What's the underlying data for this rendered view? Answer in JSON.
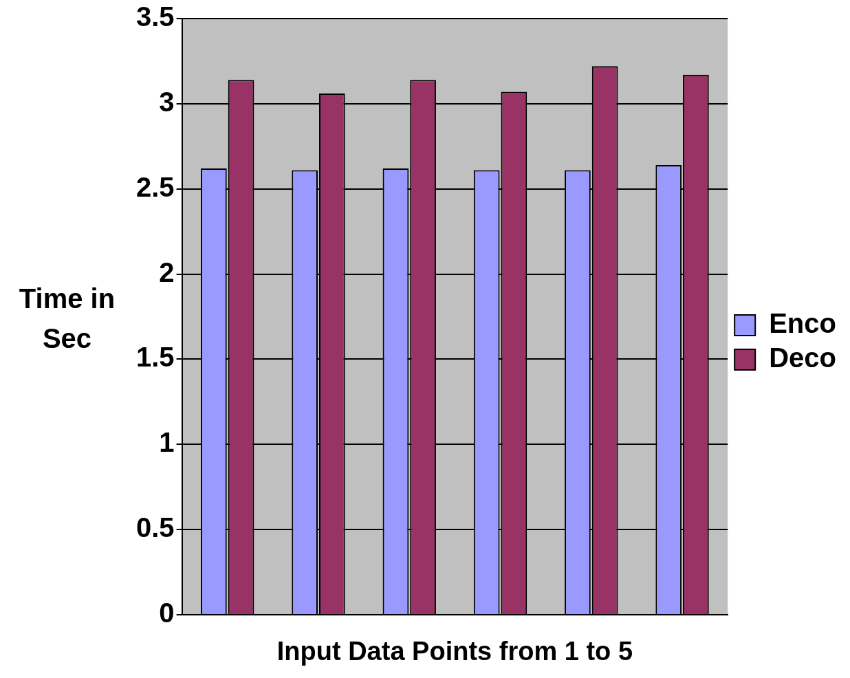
{
  "chart_data": {
    "type": "bar",
    "xlabel": "Input Data Points from 1 to 5",
    "ylabel": "Time in Sec",
    "categories": [
      null,
      null,
      null,
      null,
      null,
      null
    ],
    "series": [
      {
        "name": "Enco",
        "color": "#9999ff",
        "values": [
          2.62,
          2.61,
          2.62,
          2.61,
          2.61,
          2.64
        ]
      },
      {
        "name": "Deco",
        "color": "#993366",
        "values": [
          3.14,
          3.06,
          3.14,
          3.07,
          3.22,
          3.17
        ]
      }
    ],
    "ylim": [
      0,
      3.5
    ],
    "yticks": [
      0,
      0.5,
      1,
      1.5,
      2,
      2.5,
      3,
      3.5
    ],
    "grid": "y",
    "legend": "right"
  }
}
